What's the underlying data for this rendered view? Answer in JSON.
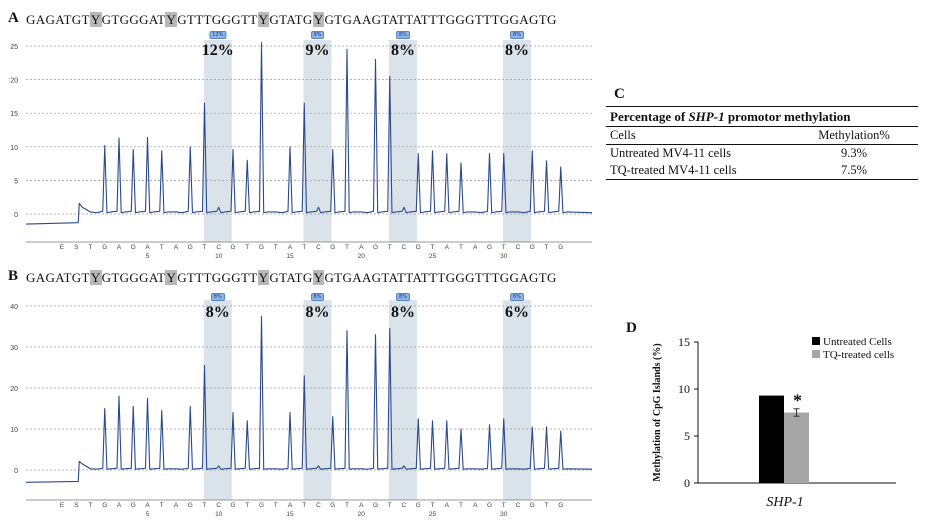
{
  "panels": {
    "a": {
      "letter": "A",
      "sequence_parts": [
        "GAGATGT",
        "Y",
        "GTGGGAT",
        "Y",
        "GTTTGGGTT",
        "Y",
        "GTATG",
        "Y",
        "GTGAAGTATTATTTGGGTTTGGAGTG"
      ],
      "percent_labels": [
        "12%",
        "9%",
        "8%",
        "8%"
      ],
      "badges": [
        "12%",
        "9%",
        "8%",
        "8%"
      ]
    },
    "b": {
      "letter": "B",
      "sequence_parts": [
        "GAGATGT",
        "Y",
        "GTGGGAT",
        "Y",
        "GTTTGGGTT",
        "Y",
        "GTATG",
        "Y",
        "GTGAAGTATTATTTGGGTTTGGAGTG"
      ],
      "percent_labels": [
        "8%",
        "8%",
        "8%",
        "6%"
      ],
      "badges": [
        "8%",
        "8%",
        "8%",
        "6%"
      ]
    }
  },
  "table_c": {
    "letter": "C",
    "caption_prefix": "Percentage of ",
    "caption_gene": "SHP-1",
    "caption_suffix": " promotor methylation",
    "col_headers": [
      "Cells",
      "Methylation%"
    ],
    "rows": [
      {
        "cells": "Untreated MV4-11 cells",
        "value": "9.3%"
      },
      {
        "cells": "TQ-treated MV4-11 cells",
        "value": "7.5%"
      }
    ]
  },
  "chart_data": [
    {
      "type": "line",
      "name": "pyrogram-A",
      "panel": "A",
      "dispensation_order": [
        "E",
        "S",
        "T",
        "G",
        "A",
        "G",
        "A",
        "T",
        "A",
        "G",
        "T",
        "C",
        "G",
        "T",
        "G",
        "T",
        "A",
        "T",
        "C",
        "G",
        "T",
        "A",
        "G",
        "T",
        "C",
        "G",
        "T",
        "A",
        "T",
        "A",
        "G",
        "T",
        "C",
        "G",
        "T",
        "G"
      ],
      "x_ticks": [
        5,
        10,
        15,
        20,
        25,
        30
      ],
      "y_ticks": [
        0,
        5,
        10,
        15,
        20,
        25
      ],
      "ylim": [
        -3,
        26
      ],
      "baseline_before": -1.5,
      "substrate_step": 1.0,
      "peaks": [
        {
          "pos": 4,
          "height": 10.2
        },
        {
          "pos": 5,
          "height": 11.3
        },
        {
          "pos": 6,
          "height": 9.6
        },
        {
          "pos": 7,
          "height": 11.4
        },
        {
          "pos": 8,
          "height": 9.4
        },
        {
          "pos": 10,
          "height": 10.0
        },
        {
          "pos": 11,
          "height": 16.5
        },
        {
          "pos": 12,
          "height": 1.0
        },
        {
          "pos": 13,
          "height": 9.6
        },
        {
          "pos": 14,
          "height": 8.0
        },
        {
          "pos": 15,
          "height": 25.5
        },
        {
          "pos": 17,
          "height": 10.0
        },
        {
          "pos": 18,
          "height": 16.5
        },
        {
          "pos": 19,
          "height": 1.0
        },
        {
          "pos": 20,
          "height": 9.6
        },
        {
          "pos": 21,
          "height": 24.5
        },
        {
          "pos": 23,
          "height": 23.0
        },
        {
          "pos": 24,
          "height": 20.5
        },
        {
          "pos": 25,
          "height": 1.0
        },
        {
          "pos": 26,
          "height": 9.0
        },
        {
          "pos": 27,
          "height": 9.4
        },
        {
          "pos": 28,
          "height": 9.0
        },
        {
          "pos": 29,
          "height": 7.6
        },
        {
          "pos": 31,
          "height": 9.0
        },
        {
          "pos": 32,
          "height": 9.0
        },
        {
          "pos": 34,
          "height": 9.4
        },
        {
          "pos": 35,
          "height": 7.9
        },
        {
          "pos": 36,
          "height": 7.0
        }
      ],
      "highlight_positions": [
        12,
        19,
        25,
        33
      ]
    },
    {
      "type": "line",
      "name": "pyrogram-B",
      "panel": "B",
      "dispensation_order": [
        "E",
        "S",
        "T",
        "G",
        "A",
        "G",
        "A",
        "T",
        "A",
        "G",
        "T",
        "C",
        "G",
        "T",
        "G",
        "T",
        "A",
        "T",
        "C",
        "G",
        "T",
        "A",
        "G",
        "T",
        "C",
        "G",
        "T",
        "A",
        "T",
        "A",
        "G",
        "T",
        "C",
        "G",
        "T",
        "G"
      ],
      "x_ticks": [
        5,
        10,
        15,
        20,
        25,
        30
      ],
      "y_ticks": [
        0,
        10,
        20,
        30,
        40
      ],
      "ylim": [
        -6,
        44
      ],
      "baseline_before": -3,
      "substrate_step": 1.5,
      "peaks": [
        {
          "pos": 4,
          "height": 15.0
        },
        {
          "pos": 5,
          "height": 18.0
        },
        {
          "pos": 6,
          "height": 15.5
        },
        {
          "pos": 7,
          "height": 17.5
        },
        {
          "pos": 8,
          "height": 14.5
        },
        {
          "pos": 10,
          "height": 15.5
        },
        {
          "pos": 11,
          "height": 25.5
        },
        {
          "pos": 12,
          "height": 1.0
        },
        {
          "pos": 13,
          "height": 14.0
        },
        {
          "pos": 14,
          "height": 12.0
        },
        {
          "pos": 15,
          "height": 37.5
        },
        {
          "pos": 17,
          "height": 14.0
        },
        {
          "pos": 18,
          "height": 23.0
        },
        {
          "pos": 19,
          "height": 1.0
        },
        {
          "pos": 20,
          "height": 13.0
        },
        {
          "pos": 21,
          "height": 34.0
        },
        {
          "pos": 23,
          "height": 33.0
        },
        {
          "pos": 24,
          "height": 34.5
        },
        {
          "pos": 25,
          "height": 1.0
        },
        {
          "pos": 26,
          "height": 12.5
        },
        {
          "pos": 27,
          "height": 12.0
        },
        {
          "pos": 28,
          "height": 12.0
        },
        {
          "pos": 29,
          "height": 10.0
        },
        {
          "pos": 31,
          "height": 11.0
        },
        {
          "pos": 32,
          "height": 12.5
        },
        {
          "pos": 34,
          "height": 10.5
        },
        {
          "pos": 35,
          "height": 10.5
        },
        {
          "pos": 36,
          "height": 9.5
        }
      ],
      "highlight_positions": [
        12,
        19,
        25,
        33
      ]
    },
    {
      "type": "bar",
      "name": "bar-D",
      "panel": "D",
      "categories": [
        "SHP-1"
      ],
      "series": [
        {
          "name": "Untreated Cells",
          "values": [
            9.3
          ],
          "color": "#000000",
          "error": [
            0
          ]
        },
        {
          "name": "TQ-treated cells",
          "values": [
            7.5
          ],
          "color": "#a6a6a6",
          "error": [
            0.4
          ]
        }
      ],
      "ylabel": "Methylation of CpG Islands (%)",
      "xlabel": "SHP-1",
      "ylim": [
        0,
        15
      ],
      "y_ticks": [
        0,
        5,
        10,
        15
      ],
      "annotation": "*",
      "legend": "top-right"
    }
  ],
  "colors": {
    "trace": "#2b4a8c",
    "highlight": "#dbe3ea",
    "grid": "#9a9a9a"
  }
}
